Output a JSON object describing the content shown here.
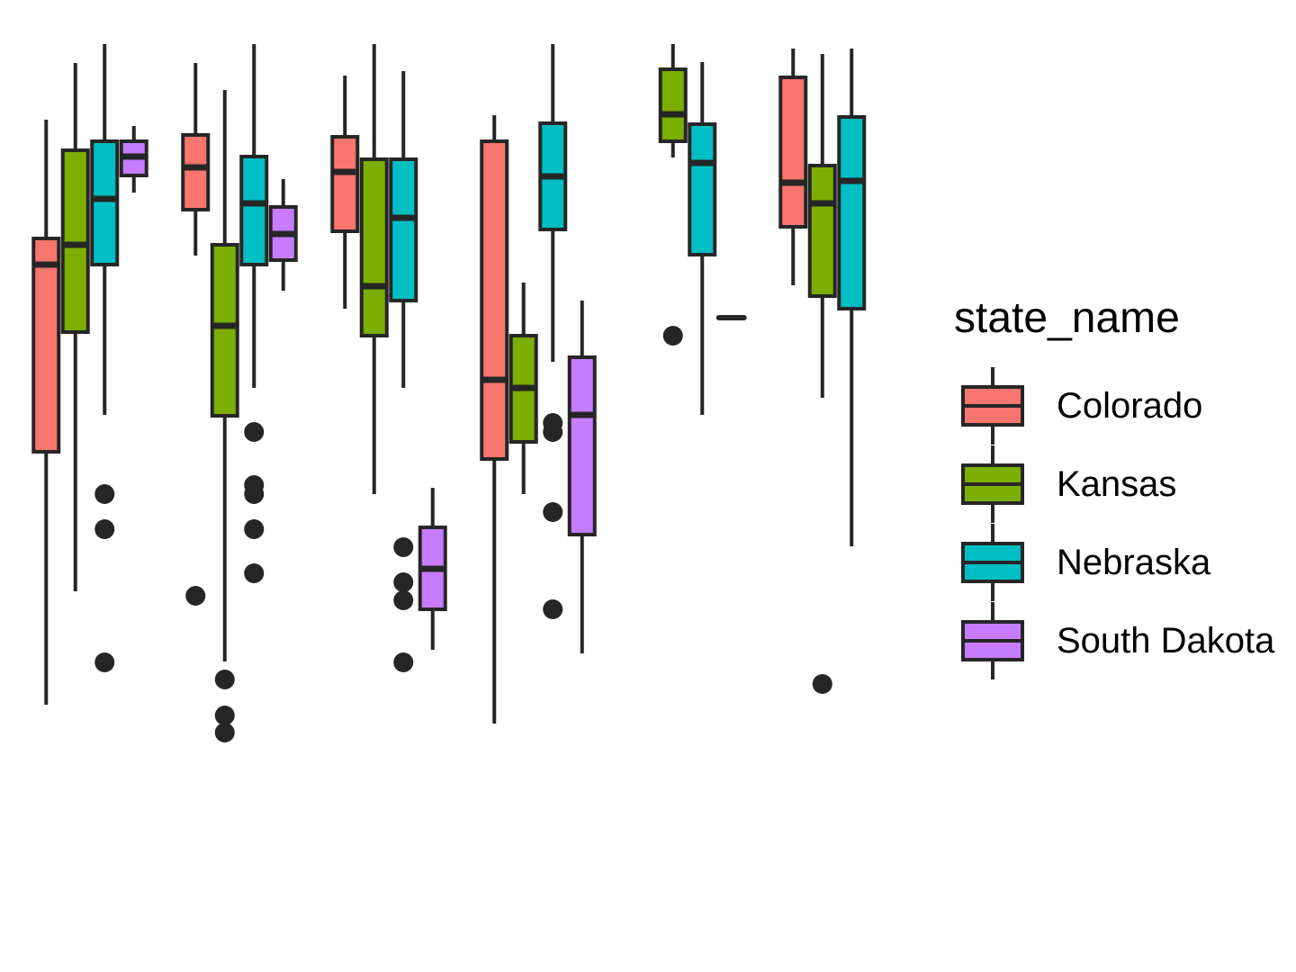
{
  "chart_data": {
    "type": "boxplot",
    "title": "",
    "xlabel": "",
    "ylabel": "",
    "axes_visible": false,
    "grid": false,
    "ylim": [
      0,
      1080
    ],
    "legend": {
      "title": "state_name",
      "position": "right",
      "entries": [
        {
          "name": "Colorado",
          "color": "#F8766D"
        },
        {
          "name": "Kansas",
          "color": "#7CAE00"
        },
        {
          "name": "Nebraska",
          "color": "#00BFC4"
        },
        {
          "name": "South Dakota",
          "color": "#C77CFF"
        }
      ]
    },
    "box_line_color": "#262626",
    "groups": [
      {
        "boxes": [
          {
            "state": "Colorado",
            "whisker_low": 297,
            "q1": 578,
            "median": 786,
            "q3": 815,
            "whisker_high": 947,
            "outliers": []
          },
          {
            "state": "Kansas",
            "whisker_low": 423,
            "q1": 711,
            "median": 808,
            "q3": 913,
            "whisker_high": 1010,
            "outliers": []
          },
          {
            "state": "Nebraska",
            "whisker_low": 619,
            "q1": 786,
            "median": 859,
            "q3": 923,
            "whisker_high": 1031,
            "outliers": [
              344,
              492,
              531
            ]
          },
          {
            "state": "South Dakota",
            "whisker_low": 866,
            "q1": 885,
            "median": 906,
            "q3": 923,
            "whisker_high": 940,
            "outliers": []
          }
        ]
      },
      {
        "boxes": [
          {
            "state": "Colorado",
            "whisker_low": 796,
            "q1": 847,
            "median": 894,
            "q3": 930,
            "whisker_high": 1010,
            "outliers": [
              418
            ]
          },
          {
            "state": "Kansas",
            "whisker_low": 345,
            "q1": 618,
            "median": 718,
            "q3": 808,
            "whisker_high": 980,
            "outliers": [
              266,
              285,
              325
            ]
          },
          {
            "state": "Nebraska",
            "whisker_low": 649,
            "q1": 786,
            "median": 854,
            "q3": 906,
            "whisker_high": 1031,
            "outliers": [
              443,
              492,
              531,
              541,
              600
            ]
          },
          {
            "state": "South Dakota",
            "whisker_low": 757,
            "q1": 791,
            "median": 820,
            "q3": 850,
            "whisker_high": 881,
            "outliers": []
          }
        ]
      },
      {
        "boxes": [
          {
            "state": "Colorado",
            "whisker_low": 737,
            "q1": 823,
            "median": 889,
            "q3": 928,
            "whisker_high": 996,
            "outliers": []
          },
          {
            "state": "Kansas",
            "whisker_low": 531,
            "q1": 707,
            "median": 762,
            "q3": 903,
            "whisker_high": 1031,
            "outliers": []
          },
          {
            "state": "Nebraska",
            "whisker_low": 649,
            "q1": 746,
            "median": 838,
            "q3": 903,
            "whisker_high": 1001,
            "outliers": [
              344,
              413,
              433,
              472
            ]
          },
          {
            "state": "South Dakota",
            "whisker_low": 358,
            "q1": 403,
            "median": 448,
            "q3": 494,
            "whisker_high": 538,
            "outliers": []
          }
        ]
      },
      {
        "boxes": [
          {
            "state": "Colorado",
            "whisker_low": 276,
            "q1": 570,
            "median": 658,
            "q3": 923,
            "whisker_high": 952,
            "outliers": []
          },
          {
            "state": "Kansas",
            "whisker_low": 531,
            "q1": 589,
            "median": 649,
            "q3": 707,
            "whisker_high": 766,
            "outliers": []
          },
          {
            "state": "Nebraska",
            "whisker_low": 678,
            "q1": 825,
            "median": 884,
            "q3": 943,
            "whisker_high": 1031,
            "outliers": [
              403,
              511,
              600,
              610
            ]
          },
          {
            "state": "South Dakota",
            "whisker_low": 354,
            "q1": 486,
            "median": 619,
            "q3": 683,
            "whisker_high": 746,
            "outliers": []
          }
        ]
      },
      {
        "boxes": [
          {
            "state": "Colorado",
            "whisker_low": null,
            "q1": null,
            "median": null,
            "q3": null,
            "whisker_high": null,
            "outliers": []
          },
          {
            "state": "Kansas",
            "whisker_low": 905,
            "q1": 923,
            "median": 953,
            "q3": 1003,
            "whisker_high": 1031,
            "outliers": [
              707
            ]
          },
          {
            "state": "Nebraska",
            "whisker_low": 619,
            "q1": 797,
            "median": 899,
            "q3": 942,
            "whisker_high": 1011,
            "outliers": []
          },
          {
            "state": "South Dakota",
            "whisker_low": 727,
            "q1": 727,
            "median": 727,
            "q3": 727,
            "whisker_high": 727,
            "outliers": []
          }
        ]
      },
      {
        "boxes": [
          {
            "state": "Colorado",
            "whisker_low": 763,
            "q1": 828,
            "median": 877,
            "q3": 994,
            "whisker_high": 1026,
            "outliers": []
          },
          {
            "state": "Kansas",
            "whisker_low": 638,
            "q1": 751,
            "median": 854,
            "q3": 896,
            "whisker_high": 1020,
            "outliers": [
              320
            ]
          },
          {
            "state": "Nebraska",
            "whisker_low": 473,
            "q1": 737,
            "median": 879,
            "q3": 950,
            "whisker_high": 1026,
            "outliers": []
          },
          {
            "state": "South Dakota",
            "whisker_low": null,
            "q1": null,
            "median": null,
            "q3": null,
            "whisker_high": null,
            "outliers": []
          }
        ]
      }
    ]
  }
}
